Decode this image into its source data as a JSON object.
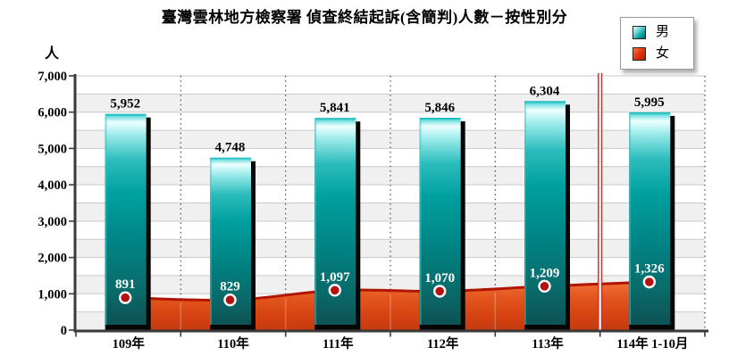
{
  "title": "臺灣雲林地方檢察署 偵查終結起訴(含簡判)人數－按性別分",
  "unit_label": "人",
  "legend": [
    {
      "label": "男",
      "color": "#00a8a8"
    },
    {
      "label": "女",
      "color": "#dd2b00"
    }
  ],
  "chart_data": {
    "type": "bar",
    "title": "臺灣雲林地方檢察署 偵查終結起訴(含簡判)人數－按性別分",
    "categories": [
      "109年",
      "110年",
      "111年",
      "112年",
      "113年",
      "114年 1-10月"
    ],
    "series": [
      {
        "name": "男",
        "type": "bar",
        "color": "#00a8a8",
        "values": [
          5952,
          4748,
          5841,
          5846,
          6304,
          5995
        ]
      },
      {
        "name": "女",
        "type": "area",
        "color": "#dd4517",
        "values": [
          891,
          829,
          1097,
          1070,
          1209,
          1326
        ]
      }
    ],
    "xlabel": "",
    "ylabel": "人",
    "ylim": [
      0,
      7000
    ],
    "ytick_step": 1000,
    "band_step": 500,
    "grid": true,
    "legend_position": "top-right",
    "separator_line_between": [
      "113年",
      "114年 1-10月"
    ],
    "separator_color": "#ee2222",
    "marker_color": "#b51212"
  }
}
